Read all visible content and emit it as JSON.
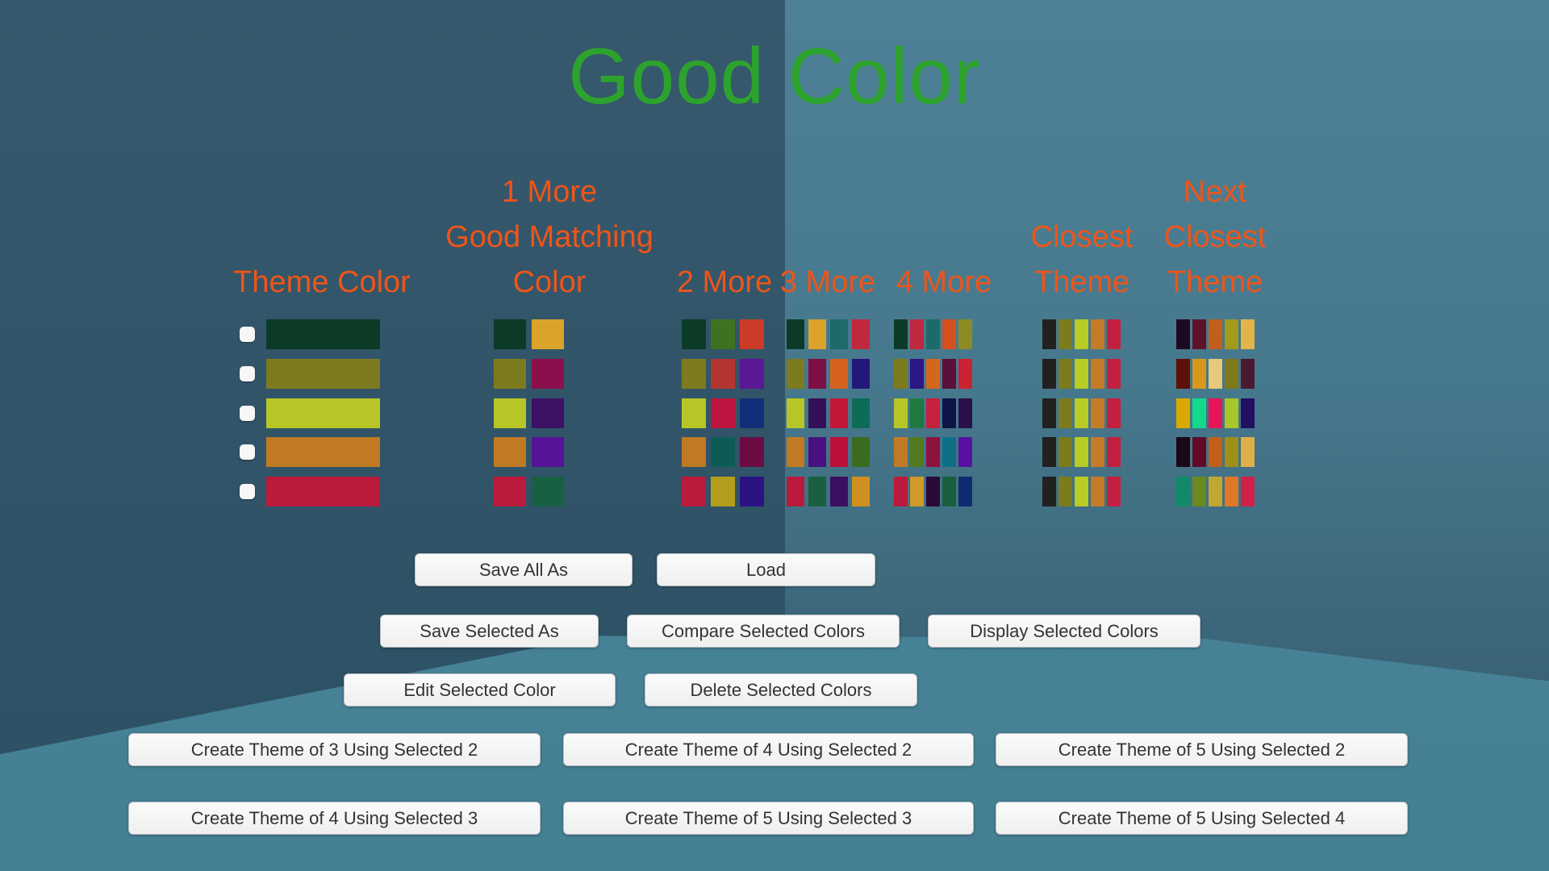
{
  "title": {
    "text": "Good Color",
    "color": "#2DA32D"
  },
  "headers": {
    "color": "#EE5519",
    "theme_color": "Theme Color",
    "one_more": [
      "1 More",
      "Good Matching",
      "Color"
    ],
    "two_more": "2 More",
    "three_more": "3 More",
    "four_more": "4 More",
    "closest": [
      "Closest",
      "Theme"
    ],
    "next_closest": [
      "Next",
      "Closest",
      "Theme"
    ]
  },
  "rows": [
    {
      "selected": false,
      "theme": "#0B3B26",
      "one_more": [
        "#0B3B26",
        "#DCA32B"
      ],
      "two_more": [
        "#0B3B26",
        "#3E7220",
        "#CC3B28"
      ],
      "three_more": [
        "#0B3B26",
        "#DCA32B",
        "#1C6B68",
        "#C02840"
      ],
      "four_more": [
        "#0B3B26",
        "#C02840",
        "#1C6B68",
        "#D4501E",
        "#8C8C25"
      ],
      "closest": [
        "#212121",
        "#7C7C1E",
        "#B8CC24",
        "#C47C28",
        "#C32040"
      ],
      "next_closest": [
        "#1D0A20",
        "#5C1228",
        "#C2601A",
        "#A29A1A",
        "#E2B44A"
      ]
    },
    {
      "selected": false,
      "theme": "#7C7B1F",
      "one_more": [
        "#7C7B1F",
        "#8C0E4C"
      ],
      "two_more": [
        "#7C7B1F",
        "#B43430",
        "#5A1892"
      ],
      "three_more": [
        "#7C7B1F",
        "#7C1044",
        "#D4611F",
        "#221878"
      ],
      "four_more": [
        "#7C7B1F",
        "#2C1884",
        "#D4661E",
        "#5A1038",
        "#CC2232"
      ],
      "closest": [
        "#212121",
        "#7C7C1E",
        "#B8CC24",
        "#C47C28",
        "#C32040"
      ],
      "next_closest": [
        "#5C1208",
        "#D8981C",
        "#E8C87A",
        "#7C7B18",
        "#4A1A30"
      ]
    },
    {
      "selected": false,
      "theme": "#B7C626",
      "one_more": [
        "#B7C626",
        "#3C1166"
      ],
      "two_more": [
        "#B7C626",
        "#BE1440",
        "#11307A"
      ],
      "three_more": [
        "#B7C626",
        "#341058",
        "#C21838",
        "#0E6B58"
      ],
      "four_more": [
        "#B7C626",
        "#1E7A40",
        "#C82040",
        "#0E1448",
        "#2A1048"
      ],
      "closest": [
        "#212121",
        "#7C7C1E",
        "#B8CC24",
        "#C47C28",
        "#C32040"
      ],
      "next_closest": [
        "#D8AA00",
        "#14D88C",
        "#E61458",
        "#A8C828",
        "#221060"
      ]
    },
    {
      "selected": false,
      "theme": "#C07A24",
      "one_more": [
        "#C07A24",
        "#571397"
      ],
      "two_more": [
        "#C07A24",
        "#0C5C55",
        "#6B0D45"
      ],
      "three_more": [
        "#C07A24",
        "#4A1080",
        "#BC1038",
        "#3A6B1E"
      ],
      "four_more": [
        "#C07A24",
        "#527A1E",
        "#8E1240",
        "#0E7086",
        "#5A10A0"
      ],
      "closest": [
        "#212121",
        "#7C7C1E",
        "#B8CC24",
        "#C47C28",
        "#C32040"
      ],
      "next_closest": [
        "#1C0818",
        "#600A28",
        "#C2601A",
        "#A09018",
        "#E0B048"
      ]
    },
    {
      "selected": false,
      "theme": "#BA1A3C",
      "one_more": [
        "#BA1A3C",
        "#176044"
      ],
      "two_more": [
        "#BA1A3C",
        "#B39E1C",
        "#2C1283"
      ],
      "three_more": [
        "#BA1A3C",
        "#1A6040",
        "#3A1060",
        "#D09020"
      ],
      "four_more": [
        "#BA1A3C",
        "#D09A28",
        "#2A0A38",
        "#186040",
        "#102A70"
      ],
      "closest": [
        "#212121",
        "#7C7C1E",
        "#B8CC24",
        "#C47C28",
        "#C32040"
      ],
      "next_closest": [
        "#108A68",
        "#6A8A20",
        "#C0A830",
        "#E07828",
        "#D02048"
      ]
    }
  ],
  "buttons": {
    "save_all_as": "Save All As",
    "load": "Load",
    "save_selected_as": "Save Selected As",
    "compare_selected": "Compare Selected Colors",
    "display_selected": "Display Selected Colors",
    "edit_selected": "Edit Selected Color",
    "delete_selected": "Delete Selected Colors",
    "create_3_of_2": "Create Theme of 3 Using Selected 2",
    "create_4_of_2": "Create Theme of 4 Using Selected 2",
    "create_5_of_2": "Create Theme of 5 Using Selected 2",
    "create_4_of_3": "Create Theme of 4 Using Selected 3",
    "create_5_of_3": "Create Theme of 5 Using Selected 3",
    "create_5_of_4": "Create Theme of 5 Using Selected 4"
  }
}
